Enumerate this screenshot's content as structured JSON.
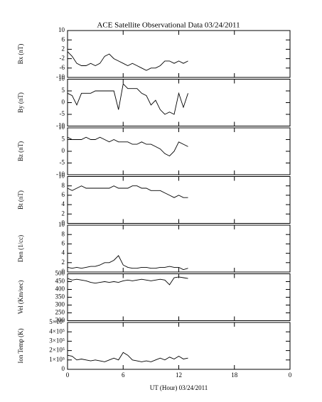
{
  "chart_data": [
    {
      "type": "line",
      "title": "ACE Satellite Observational Data   03/24/2011",
      "ylabel": "Bx (nT)",
      "color": "#000000",
      "x": [
        0,
        0.5,
        1,
        1.5,
        2,
        2.5,
        3,
        3.5,
        4,
        4.5,
        5,
        5.5,
        6,
        6.5,
        7,
        7.5,
        8,
        8.5,
        9,
        9.5,
        10,
        10.5,
        11,
        11.5,
        12,
        12.5,
        13
      ],
      "values": [
        1,
        -1,
        -4,
        -5,
        -5,
        -4,
        -5,
        -4,
        -1,
        0,
        -2,
        -3,
        -4,
        -5,
        -4,
        -5,
        -6,
        -7,
        -6,
        -6,
        -5,
        -3,
        -3,
        -4,
        -3,
        -4,
        -3
      ],
      "xlim": [
        0,
        24
      ],
      "xticks": [
        0,
        6,
        12,
        18,
        24
      ],
      "ylim": [
        -10,
        10
      ],
      "yticks": [
        -10,
        -6,
        -2,
        2,
        6,
        10
      ]
    },
    {
      "type": "line",
      "ylabel": "By (nT)",
      "color": "#000000",
      "x": [
        0,
        0.5,
        1,
        1.5,
        2,
        2.5,
        3,
        3.5,
        4,
        4.5,
        5,
        5.5,
        6,
        6.5,
        7,
        7.5,
        8,
        8.5,
        9,
        9.5,
        10,
        10.5,
        11,
        11.5,
        12,
        12.5,
        13
      ],
      "values": [
        4,
        3,
        -1,
        4,
        4,
        4,
        5,
        5,
        5,
        5,
        5,
        -3,
        8,
        6,
        6,
        6,
        4,
        3,
        -1,
        1,
        -3,
        -5,
        -4,
        -5,
        4,
        -2,
        4
      ],
      "xlim": [
        0,
        24
      ],
      "xticks": [
        0,
        6,
        12,
        18,
        24
      ],
      "ylim": [
        -10,
        10
      ],
      "yticks": [
        -10,
        -5,
        0,
        5,
        10
      ]
    },
    {
      "type": "line",
      "ylabel": "Bz (nT)",
      "color": "#000000",
      "x": [
        0,
        0.5,
        1,
        1.5,
        2,
        2.5,
        3,
        3.5,
        4,
        4.5,
        5,
        5.5,
        6,
        6.5,
        7,
        7.5,
        8,
        8.5,
        9,
        9.5,
        10,
        10.5,
        11,
        11.5,
        12,
        12.5,
        13
      ],
      "values": [
        6,
        5,
        5,
        5,
        6,
        5,
        5,
        6,
        5,
        4,
        5,
        4,
        4,
        4,
        3,
        3,
        4,
        3,
        3,
        2,
        1,
        -1,
        -2,
        0,
        4,
        3,
        2
      ],
      "xlim": [
        0,
        24
      ],
      "xticks": [
        0,
        6,
        12,
        18,
        24
      ],
      "ylim": [
        -10,
        10
      ],
      "yticks": [
        -10,
        -5,
        0,
        5,
        10
      ]
    },
    {
      "type": "line",
      "ylabel": "Bt (nT)",
      "color": "#000000",
      "x": [
        0,
        0.5,
        1,
        1.5,
        2,
        2.5,
        3,
        3.5,
        4,
        4.5,
        5,
        5.5,
        6,
        6.5,
        7,
        7.5,
        8,
        8.5,
        9,
        9.5,
        10,
        10.5,
        11,
        11.5,
        12,
        12.5,
        13
      ],
      "values": [
        7.5,
        7,
        7.5,
        8,
        7.5,
        7.5,
        7.5,
        7.5,
        7.5,
        7.5,
        8,
        7.5,
        7.5,
        7.5,
        8,
        8,
        7.5,
        7.5,
        7,
        7,
        7,
        6.5,
        6,
        5.5,
        6,
        5.5,
        5.5
      ],
      "xlim": [
        0,
        24
      ],
      "xticks": [
        0,
        6,
        12,
        18,
        24
      ],
      "ylim": [
        0,
        10
      ],
      "yticks": [
        0,
        2,
        4,
        6,
        8,
        10
      ]
    },
    {
      "type": "line",
      "ylabel": "Den (1/cc)",
      "color": "#000000",
      "x": [
        0,
        0.5,
        1,
        1.5,
        2,
        2.5,
        3,
        3.5,
        4,
        4.5,
        5,
        5.5,
        6,
        6.5,
        7,
        7.5,
        8,
        8.5,
        9,
        9.5,
        10,
        10.5,
        11,
        11.5,
        12,
        12.5,
        13
      ],
      "values": [
        1,
        0.8,
        1,
        0.8,
        1,
        1.2,
        1.2,
        1.5,
        2,
        2,
        2.5,
        3.5,
        1.5,
        1,
        0.8,
        0.8,
        1,
        1,
        0.8,
        0.8,
        1,
        1,
        1.2,
        1,
        1,
        0.5,
        0.8
      ],
      "xlim": [
        0,
        24
      ],
      "xticks": [
        0,
        6,
        12,
        18,
        24
      ],
      "ylim": [
        0,
        10
      ],
      "yticks": [
        0,
        2,
        4,
        6,
        8,
        10
      ]
    },
    {
      "type": "line",
      "ylabel": "Vel (Km/sec)",
      "color": "#000000",
      "x": [
        0,
        0.5,
        1,
        1.5,
        2,
        2.5,
        3,
        3.5,
        4,
        4.5,
        5,
        5.5,
        6,
        6.5,
        7,
        7.5,
        8,
        8.5,
        9,
        9.5,
        10,
        10.5,
        11,
        11.5,
        12,
        12.5,
        13
      ],
      "values": [
        470,
        460,
        465,
        460,
        455,
        445,
        440,
        445,
        450,
        445,
        450,
        445,
        455,
        460,
        455,
        460,
        465,
        460,
        455,
        460,
        465,
        460,
        430,
        475,
        480,
        475,
        470
      ],
      "xlim": [
        0,
        24
      ],
      "xticks": [
        0,
        6,
        12,
        18,
        24
      ],
      "ylim": [
        200,
        500
      ],
      "yticks": [
        200,
        250,
        300,
        350,
        400,
        450,
        500
      ]
    },
    {
      "type": "line",
      "ylabel": "Ion Temp (K)",
      "xlabel": "UT (Hour)  03/24/2011",
      "color": "#000000",
      "x": [
        0,
        0.5,
        1,
        1.5,
        2,
        2.5,
        3,
        3.5,
        4,
        4.5,
        5,
        5.5,
        6,
        6.5,
        7,
        7.5,
        8,
        8.5,
        9,
        9.5,
        10,
        10.5,
        11,
        11.5,
        12,
        12.5,
        13
      ],
      "values": [
        150000,
        140000,
        100000,
        110000,
        100000,
        90000,
        100000,
        90000,
        80000,
        100000,
        120000,
        100000,
        180000,
        150000,
        100000,
        90000,
        80000,
        90000,
        80000,
        100000,
        120000,
        100000,
        130000,
        110000,
        140000,
        110000,
        120000
      ],
      "xlim": [
        0,
        24
      ],
      "xticks": [
        0,
        6,
        12,
        18,
        {
          "value": 24,
          "label": "0"
        }
      ],
      "ylim": [
        0,
        500000
      ],
      "yticks": [
        0,
        {
          "value": 100000,
          "label": "1×10⁵"
        },
        {
          "value": 200000,
          "label": "2×10⁵"
        },
        {
          "value": 300000,
          "label": "3×10⁵"
        },
        {
          "value": 400000,
          "label": "4×10⁵"
        },
        {
          "value": 500000,
          "label": "5×10⁵"
        }
      ]
    }
  ]
}
